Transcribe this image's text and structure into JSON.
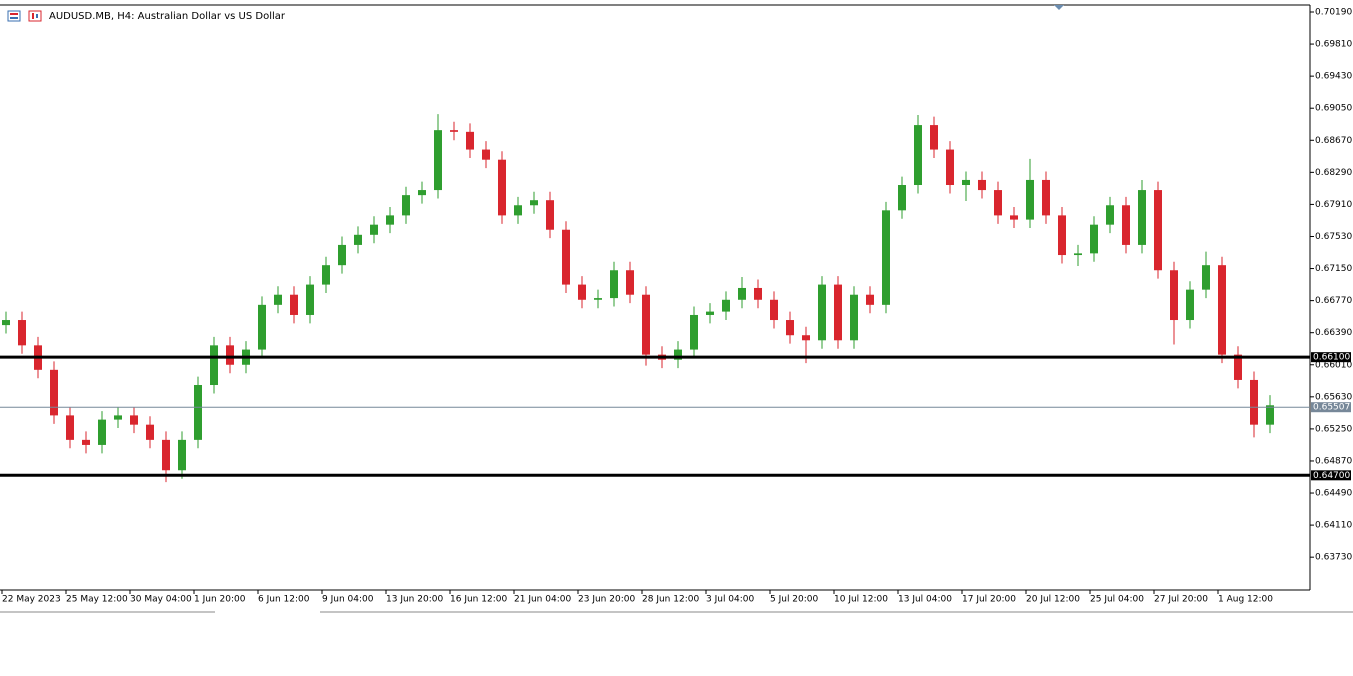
{
  "chart_data": {
    "type": "candlestick",
    "title": "AUDUSD.MB, H4:  Australian Dollar vs US Dollar",
    "up_color": "#2f9e2f",
    "down_color": "#d9262e",
    "categories": [
      "22 May 2023",
      null,
      null,
      null,
      "25 May 12:00",
      null,
      null,
      null,
      "30 May 04:00",
      null,
      null,
      null,
      "1 Jun 20:00",
      null,
      null,
      null,
      "6 Jun 12:00",
      null,
      null,
      null,
      "9 Jun 04:00",
      null,
      null,
      null,
      "13 Jun 20:00",
      null,
      null,
      null,
      "16 Jun 12:00",
      null,
      null,
      null,
      "21 Jun 04:00",
      null,
      null,
      null,
      "23 Jun 20:00",
      null,
      null,
      null,
      "28 Jun 12:00",
      null,
      null,
      null,
      "3 Jul 04:00",
      null,
      null,
      null,
      "5 Jul 20:00",
      null,
      null,
      null,
      "10 Jul 12:00",
      null,
      null,
      null,
      "13 Jul 04:00",
      null,
      null,
      null,
      "17 Jul 20:00",
      null,
      null,
      null,
      "20 Jul 12:00",
      null,
      null,
      null,
      "25 Jul 04:00",
      null,
      null,
      null,
      "27 Jul 20:00",
      null,
      null,
      null,
      "1 Aug 12:00",
      null,
      null,
      null
    ],
    "open": [
      0.6648,
      0.6654,
      0.6624,
      0.6595,
      0.6541,
      0.6512,
      0.6506,
      0.6536,
      0.6541,
      0.653,
      0.6512,
      0.6476,
      0.6512,
      0.6577,
      0.6624,
      0.6601,
      0.6619,
      0.6672,
      0.6684,
      0.666,
      0.6696,
      0.6719,
      0.6743,
      0.6755,
      0.6767,
      0.6778,
      0.6802,
      0.6808,
      0.6879,
      0.6877,
      0.6856,
      0.6844,
      0.6778,
      0.679,
      0.6796,
      0.6761,
      0.6696,
      0.6678,
      0.668,
      0.6713,
      0.6684,
      0.6613,
      0.6607,
      0.6619,
      0.666,
      0.6664,
      0.6678,
      0.6692,
      0.6678,
      0.6654,
      0.6636,
      0.663,
      0.6696,
      0.663,
      0.6684,
      0.6672,
      0.6784,
      0.6814,
      0.6885,
      0.6856,
      0.6814,
      0.682,
      0.6808,
      0.6778,
      0.6773,
      0.682,
      0.6778,
      0.6731,
      0.6733,
      0.6767,
      0.679,
      0.6743,
      0.6808,
      0.6713,
      0.6654,
      0.669,
      0.6719,
      0.6613,
      0.6583,
      0.653
    ],
    "high": [
      0.6664,
      0.6664,
      0.6634,
      0.6605,
      0.6551,
      0.6522,
      0.6546,
      0.6551,
      0.6551,
      0.654,
      0.6522,
      0.6522,
      0.6587,
      0.6634,
      0.6634,
      0.6629,
      0.6682,
      0.6694,
      0.6694,
      0.6706,
      0.6729,
      0.6753,
      0.6765,
      0.6777,
      0.6788,
      0.6812,
      0.6818,
      0.6898,
      0.6889,
      0.6887,
      0.6866,
      0.6854,
      0.68,
      0.6806,
      0.6806,
      0.6771,
      0.6706,
      0.669,
      0.6723,
      0.6723,
      0.6694,
      0.6623,
      0.6629,
      0.667,
      0.6674,
      0.6688,
      0.6705,
      0.6702,
      0.6688,
      0.6664,
      0.6646,
      0.6706,
      0.6706,
      0.6694,
      0.6694,
      0.6794,
      0.6824,
      0.6897,
      0.6895,
      0.6866,
      0.683,
      0.683,
      0.6818,
      0.6788,
      0.6845,
      0.683,
      0.6788,
      0.6743,
      0.6777,
      0.68,
      0.68,
      0.682,
      0.6818,
      0.6723,
      0.67,
      0.6735,
      0.6729,
      0.6623,
      0.6593,
      0.6565
    ],
    "low": [
      0.6638,
      0.6614,
      0.6585,
      0.6531,
      0.6502,
      0.6496,
      0.6496,
      0.6526,
      0.652,
      0.6502,
      0.6462,
      0.6466,
      0.6502,
      0.6567,
      0.6591,
      0.6591,
      0.6609,
      0.6662,
      0.665,
      0.665,
      0.6686,
      0.6709,
      0.6733,
      0.6745,
      0.6757,
      0.6768,
      0.6792,
      0.6798,
      0.6867,
      0.6846,
      0.6834,
      0.6768,
      0.6768,
      0.678,
      0.6751,
      0.6686,
      0.6668,
      0.6668,
      0.667,
      0.6674,
      0.66,
      0.6597,
      0.6597,
      0.6609,
      0.665,
      0.6654,
      0.6668,
      0.6668,
      0.6644,
      0.6626,
      0.6603,
      0.662,
      0.662,
      0.662,
      0.6662,
      0.6662,
      0.6774,
      0.6804,
      0.6846,
      0.6804,
      0.6795,
      0.6798,
      0.6768,
      0.6763,
      0.6763,
      0.6768,
      0.6721,
      0.6718,
      0.6723,
      0.6757,
      0.6733,
      0.6733,
      0.6703,
      0.6625,
      0.6644,
      0.668,
      0.6603,
      0.6573,
      0.6515,
      0.652
    ],
    "close": [
      0.6654,
      0.6624,
      0.6595,
      0.6541,
      0.6512,
      0.6506,
      0.6536,
      0.6541,
      0.653,
      0.6512,
      0.6476,
      0.6512,
      0.6577,
      0.6624,
      0.6601,
      0.6619,
      0.6672,
      0.6684,
      0.666,
      0.6696,
      0.6719,
      0.6743,
      0.6755,
      0.6767,
      0.6778,
      0.6802,
      0.6808,
      0.6879,
      0.6877,
      0.6856,
      0.6844,
      0.6778,
      0.679,
      0.6796,
      0.6761,
      0.6696,
      0.6678,
      0.668,
      0.6713,
      0.6684,
      0.6613,
      0.6607,
      0.6619,
      0.666,
      0.6664,
      0.6678,
      0.6692,
      0.6678,
      0.6654,
      0.6636,
      0.663,
      0.6696,
      0.663,
      0.6684,
      0.6672,
      0.6784,
      0.6814,
      0.6885,
      0.6856,
      0.6814,
      0.682,
      0.6808,
      0.6778,
      0.6773,
      0.682,
      0.6778,
      0.6731,
      0.6733,
      0.6767,
      0.679,
      0.6743,
      0.6808,
      0.6713,
      0.6654,
      0.669,
      0.6719,
      0.6613,
      0.6583,
      0.653,
      0.6553
    ],
    "ylim": [
      0.63341,
      0.70273
    ],
    "yticks": [
      {
        "value": 0.7019,
        "label": "0.70190"
      },
      {
        "value": 0.6981,
        "label": "0.69810"
      },
      {
        "value": 0.6943,
        "label": "0.69430"
      },
      {
        "value": 0.6905,
        "label": "0.69050"
      },
      {
        "value": 0.6867,
        "label": "0.68670"
      },
      {
        "value": 0.6829,
        "label": "0.68290"
      },
      {
        "value": 0.6791,
        "label": "0.67910"
      },
      {
        "value": 0.6753,
        "label": "0.67530"
      },
      {
        "value": 0.6715,
        "label": "0.67150"
      },
      {
        "value": 0.6677,
        "label": "0.66770"
      },
      {
        "value": 0.6639,
        "label": "0.66390"
      },
      {
        "value": 0.6601,
        "label": "0.66010"
      },
      {
        "value": 0.6563,
        "label": "0.65630"
      },
      {
        "value": 0.6525,
        "label": "0.65250"
      },
      {
        "value": 0.6487,
        "label": "0.64870"
      },
      {
        "value": 0.6449,
        "label": "0.64490"
      },
      {
        "value": 0.6411,
        "label": "0.64110"
      },
      {
        "value": 0.6373,
        "label": "0.63730"
      }
    ],
    "hlines": [
      {
        "value": 0.661,
        "label": "0.66100",
        "color": "#000000"
      },
      {
        "value": 0.647,
        "label": "0.64700",
        "color": "#000000"
      }
    ],
    "bid": {
      "value": 0.65507,
      "label": "0.65507",
      "color": "#778899"
    }
  }
}
